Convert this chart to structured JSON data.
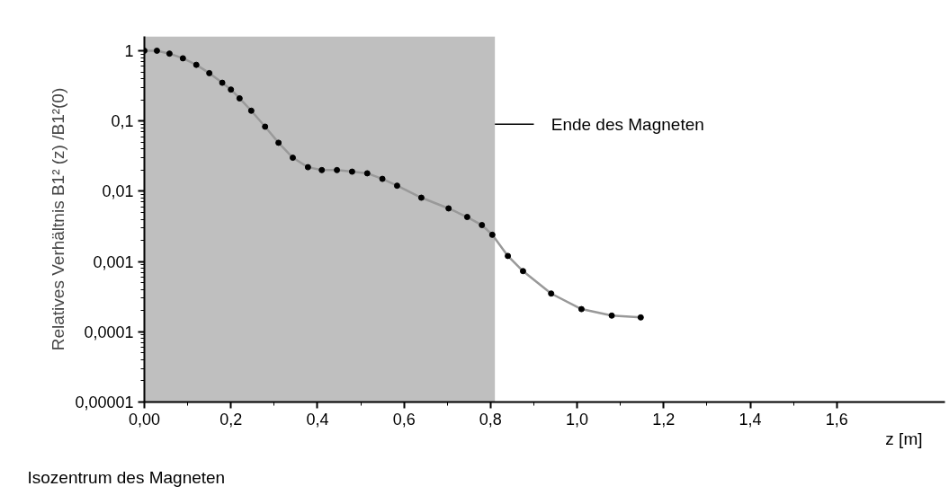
{
  "chart_data": {
    "type": "line",
    "xlabel": "z [m]",
    "ylabel": "Relatives Verhältnis B1² (z) /B1²(0)",
    "log": "y",
    "marker": "circle",
    "line_style": "solid",
    "grid": false,
    "series": [
      {
        "color": "#999999",
        "x": [
          0,
          0.029,
          0.058,
          0.089,
          0.12,
          0.15,
          0.18,
          0.2,
          0.22,
          0.247,
          0.279,
          0.31,
          0.343,
          0.378,
          0.41,
          0.445,
          0.48,
          0.515,
          0.55,
          0.584,
          0.64,
          0.703,
          0.746,
          0.78,
          0.804,
          0.84,
          0.875,
          0.94,
          1.01,
          1.08,
          1.147
        ],
        "values": [
          1,
          1,
          0.91,
          0.78,
          0.63,
          0.48,
          0.35,
          0.28,
          0.21,
          0.14,
          0.083,
          0.049,
          0.03,
          0.022,
          0.02,
          0.02,
          0.019,
          0.018,
          0.015,
          0.012,
          0.0081,
          0.0057,
          0.0043,
          0.0033,
          0.0024,
          0.0012,
          0.00073,
          0.00035,
          0.00021,
          0.00017,
          0.00016
        ]
      }
    ],
    "xlim": [
      0,
      1.85
    ],
    "xticks": [
      {
        "value": 0,
        "label": "0,00"
      },
      {
        "value": 0.2,
        "label": "0,2"
      },
      {
        "value": 0.4,
        "label": "0,4"
      },
      {
        "value": 0.6,
        "label": "0,6"
      },
      {
        "value": 0.8,
        "label": "0,8"
      },
      {
        "value": 1.0,
        "label": "1,0"
      },
      {
        "value": 1.2,
        "label": "1,2"
      },
      {
        "value": 1.4,
        "label": "1,4"
      },
      {
        "value": 1.6,
        "label": "1,6"
      }
    ],
    "ylim": [
      1e-05,
      1.6
    ],
    "yticks": [
      {
        "value": 1e-05,
        "label": "0,00001"
      },
      {
        "value": 0.0001,
        "label": "0,0001"
      },
      {
        "value": 0.001,
        "label": "0,001"
      },
      {
        "value": 0.01,
        "label": "0,01"
      },
      {
        "value": 0.1,
        "label": "0,1"
      },
      1
    ],
    "bands": [
      {
        "axis": "x",
        "from": 0,
        "to": 0.81,
        "label": "Ende des Magneten",
        "color": "#bfbfbf"
      }
    ],
    "annotations": [
      "Isozentrum des Magneten"
    ]
  }
}
